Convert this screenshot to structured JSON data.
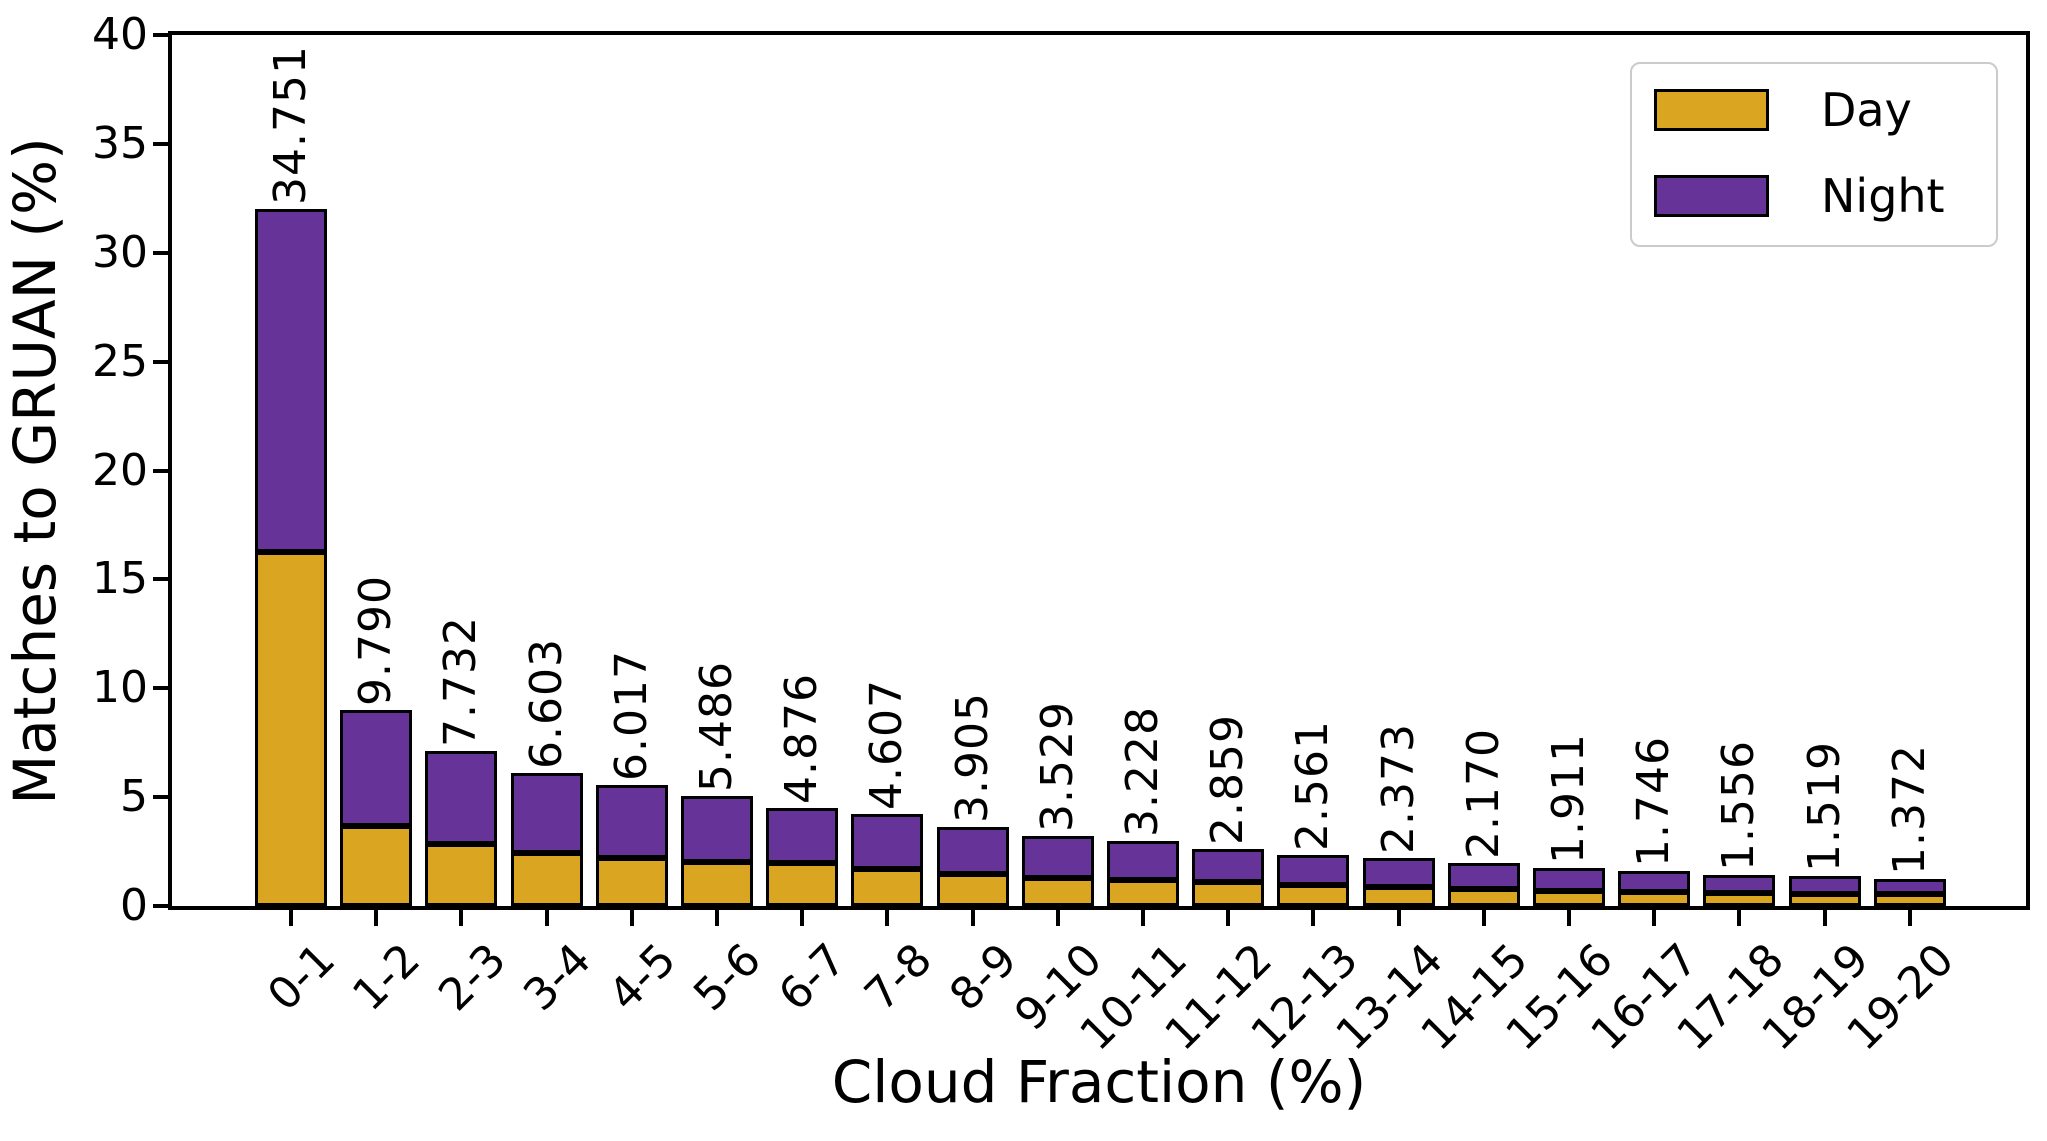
{
  "chart_data": {
    "type": "bar",
    "stacked": true,
    "title": "",
    "xlabel": "Cloud Fraction (%)",
    "ylabel": "Matches to GRUAN (%)",
    "ylim": [
      0,
      40
    ],
    "yticks": [
      0,
      5,
      10,
      15,
      20,
      25,
      30,
      35,
      40
    ],
    "grid": false,
    "legend_position": "upper right",
    "categories": [
      "0-1",
      "1-2",
      "2-3",
      "3-4",
      "4-5",
      "5-6",
      "6-7",
      "7-8",
      "8-9",
      "9-10",
      "10-11",
      "11-12",
      "12-13",
      "13-14",
      "14-15",
      "15-16",
      "16-17",
      "17-18",
      "18-19",
      "19-20"
    ],
    "bar_total_labels": [
      "34.751",
      "9.790",
      "7.732",
      "6.603",
      "6.017",
      "5.486",
      "4.876",
      "4.607",
      "3.905",
      "3.529",
      "3.228",
      "2.859",
      "2.561",
      "2.373",
      "2.170",
      "1.911",
      "1.746",
      "1.556",
      "1.519",
      "1.372"
    ],
    "series": [
      {
        "name": "Day",
        "color": "#DAA520",
        "values": [
          16.25,
          3.66,
          2.83,
          2.42,
          2.19,
          2.01,
          1.97,
          1.7,
          1.45,
          1.3,
          1.19,
          1.1,
          0.98,
          0.85,
          0.79,
          0.69,
          0.63,
          0.6,
          0.56,
          0.55
        ]
      },
      {
        "name": "Night",
        "color": "#663399",
        "values": [
          15.75,
          5.35,
          4.29,
          3.66,
          3.35,
          3.04,
          2.52,
          2.54,
          2.15,
          1.95,
          1.78,
          1.53,
          1.38,
          1.34,
          1.21,
          1.07,
          0.98,
          0.83,
          0.84,
          0.71
        ]
      }
    ],
    "edge_color": "#000000"
  }
}
